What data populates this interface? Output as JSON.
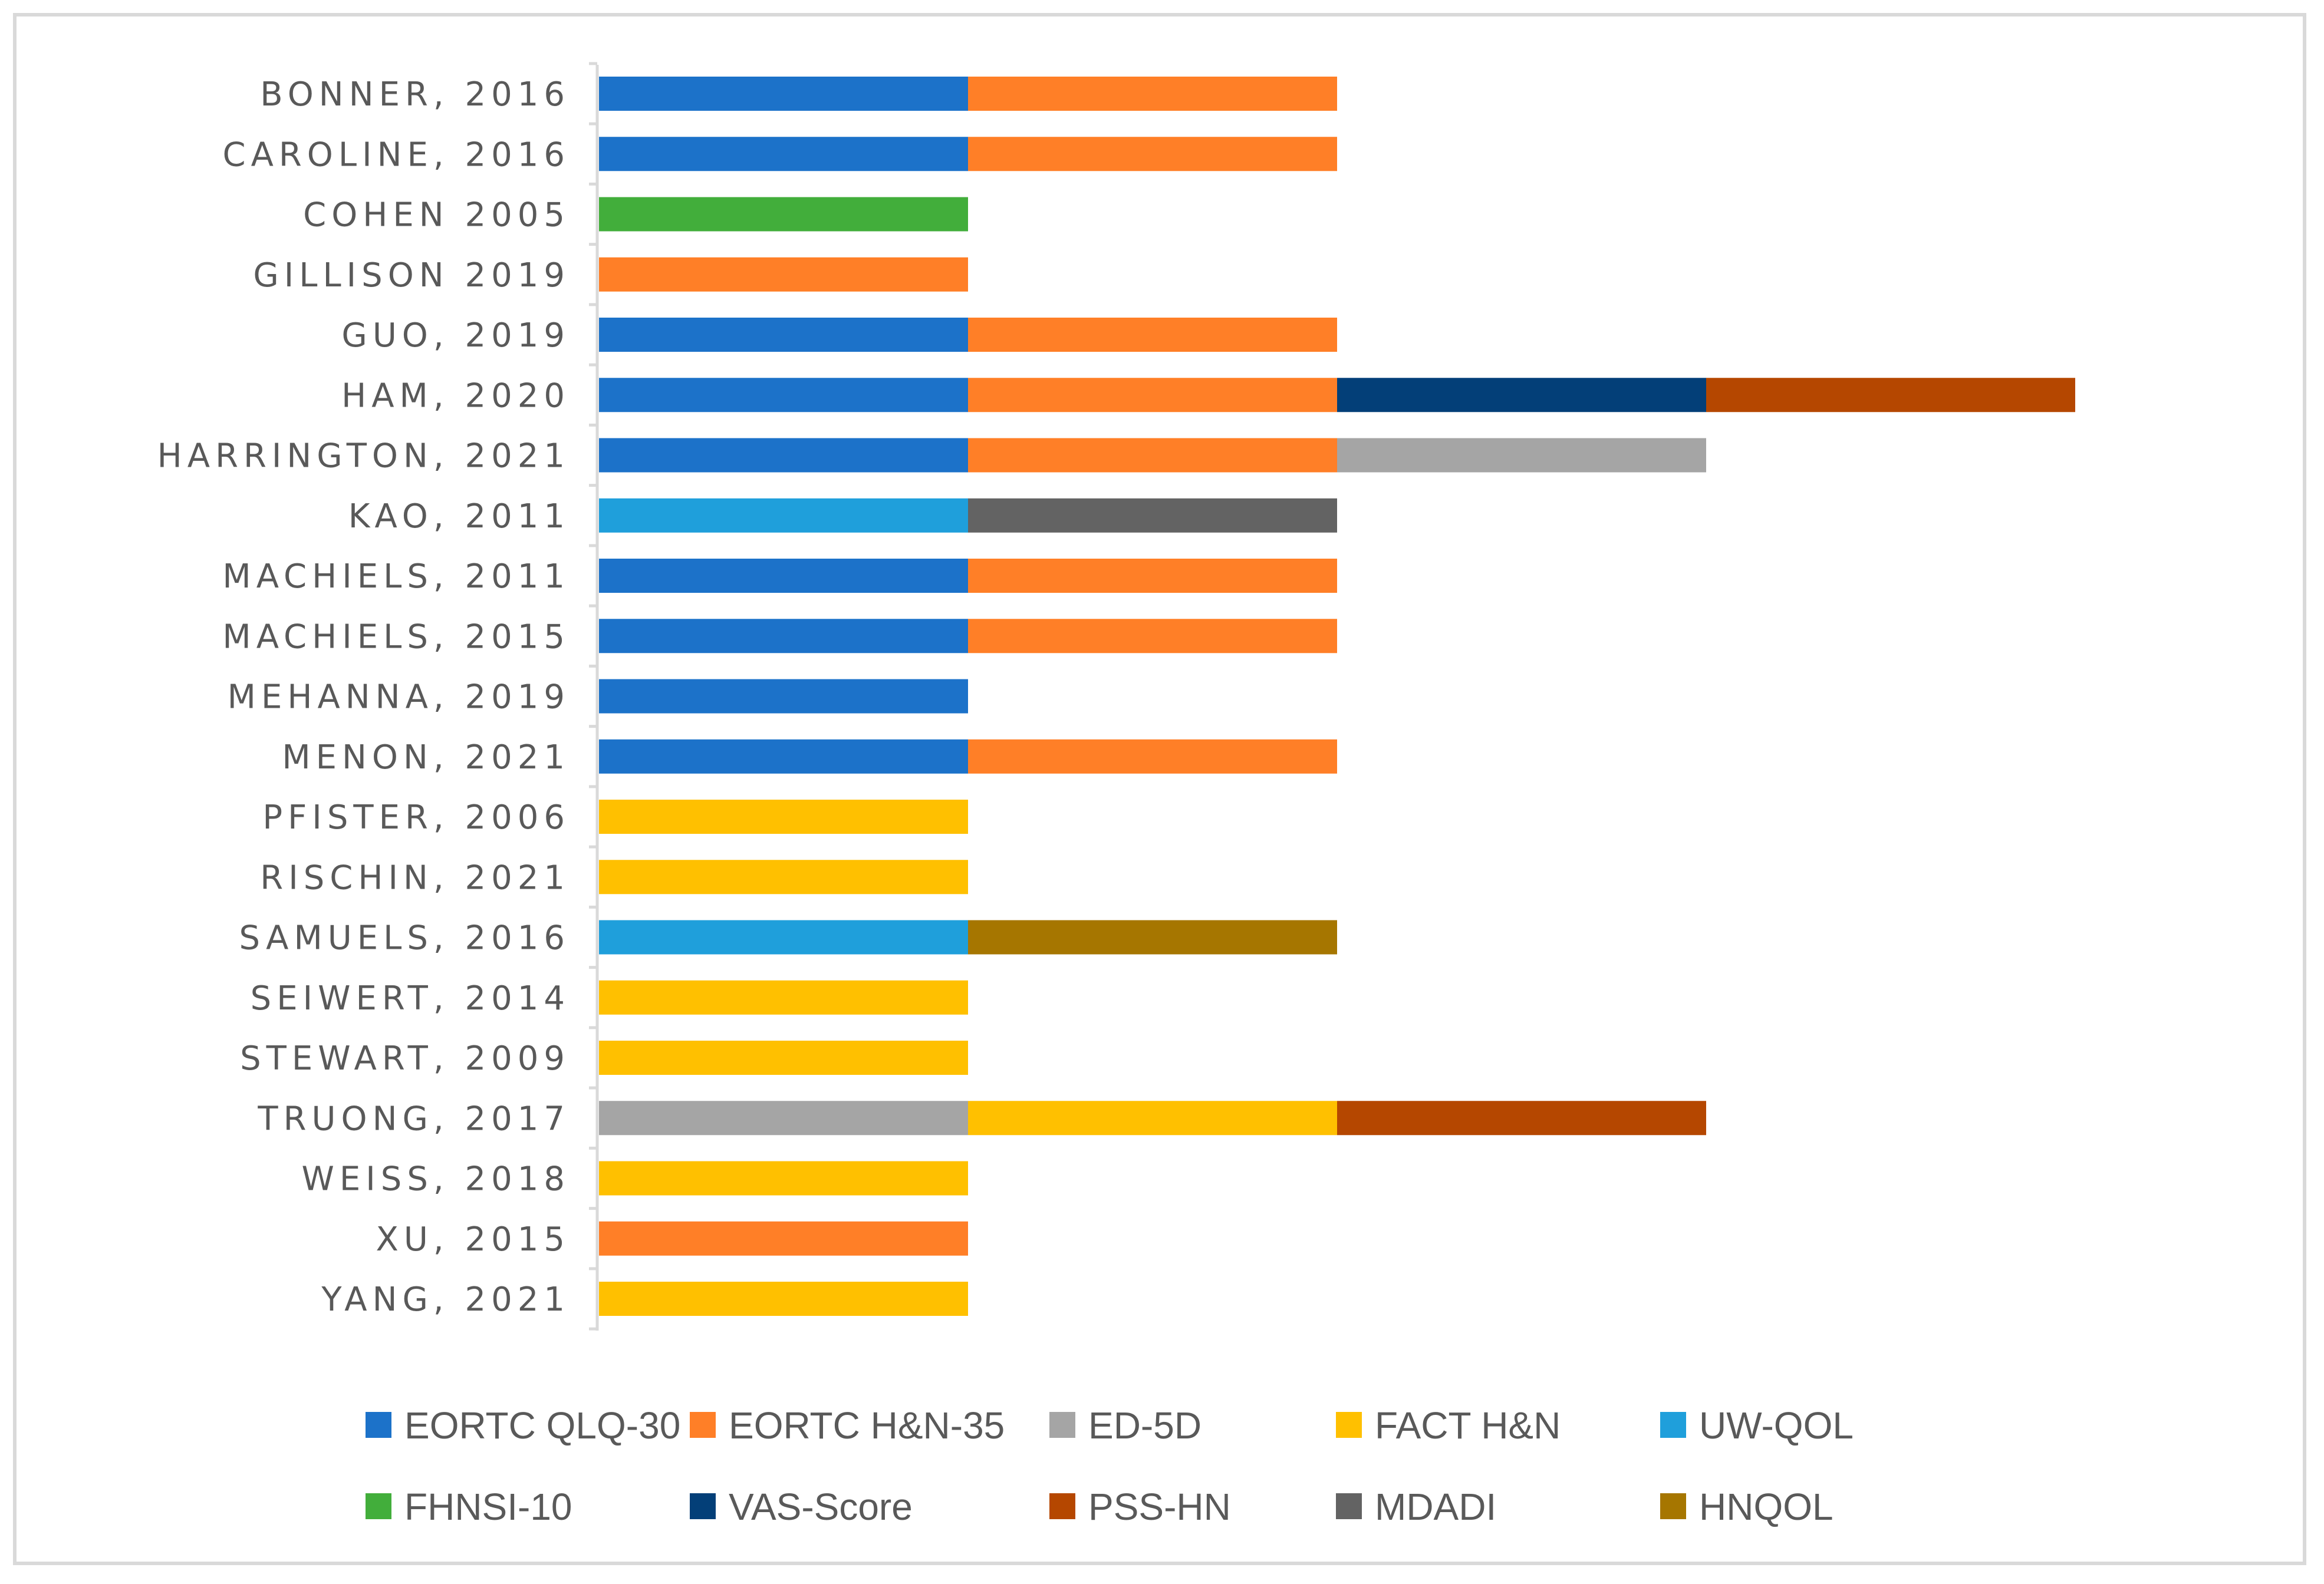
{
  "chart_data": {
    "type": "bar",
    "orientation": "horizontal",
    "stacked": true,
    "title": "",
    "xlabel": "",
    "ylabel": "",
    "xlim": [
      0,
      4
    ],
    "grid": false,
    "legend_position": "bottom",
    "categories": [
      "BONNER, 2016",
      "CAROLINE, 2016",
      "COHEN 2005",
      "GILLISON 2019",
      "GUO, 2019",
      "HAM, 2020",
      "HARRINGTON, 2021",
      "KAO, 2011",
      "MACHIELS, 2011",
      "MACHIELS, 2015",
      "MEHANNA, 2019",
      "MENON, 2021",
      "PFISTER, 2006",
      "RISCHIN, 2021",
      "SAMUELS, 2016",
      "SEIWERT, 2014",
      "STEWART, 2009",
      "TRUONG, 2017",
      "WEISS, 2018",
      "XU, 2015",
      "YANG, 2021"
    ],
    "series": [
      {
        "name": "EORTC QLQ-30",
        "color": "#1c72c9"
      },
      {
        "name": "EORTC H&N-35",
        "color": "#ff7f27"
      },
      {
        "name": "ED-5D",
        "color": "#a5a5a5"
      },
      {
        "name": "FACT H&N",
        "color": "#ffc000"
      },
      {
        "name": "UW-QOL",
        "color": "#1f9fdb"
      },
      {
        "name": "FHNSI-10",
        "color": "#42ae3b"
      },
      {
        "name": "VAS-Score",
        "color": "#033f78"
      },
      {
        "name": "PSS-HN",
        "color": "#b54700"
      },
      {
        "name": "MDADI",
        "color": "#636363"
      },
      {
        "name": "HNQOL",
        "color": "#a67600"
      }
    ],
    "stacks": [
      [
        "EORTC QLQ-30",
        "EORTC H&N-35"
      ],
      [
        "EORTC QLQ-30",
        "EORTC H&N-35"
      ],
      [
        "FHNSI-10"
      ],
      [
        "EORTC H&N-35"
      ],
      [
        "EORTC QLQ-30",
        "EORTC H&N-35"
      ],
      [
        "EORTC QLQ-30",
        "EORTC H&N-35",
        "VAS-Score",
        "PSS-HN"
      ],
      [
        "EORTC QLQ-30",
        "EORTC H&N-35",
        "ED-5D"
      ],
      [
        "UW-QOL",
        "MDADI"
      ],
      [
        "EORTC QLQ-30",
        "EORTC H&N-35"
      ],
      [
        "EORTC QLQ-30",
        "EORTC H&N-35"
      ],
      [
        "EORTC QLQ-30"
      ],
      [
        "EORTC QLQ-30",
        "EORTC H&N-35"
      ],
      [
        "FACT H&N"
      ],
      [
        "FACT H&N"
      ],
      [
        "UW-QOL",
        "HNQOL"
      ],
      [
        "FACT H&N"
      ],
      [
        "FACT H&N"
      ],
      [
        "ED-5D",
        "FACT H&N",
        "PSS-HN"
      ],
      [
        "FACT H&N"
      ],
      [
        "EORTC H&N-35"
      ],
      [
        "FACT H&N"
      ]
    ]
  }
}
